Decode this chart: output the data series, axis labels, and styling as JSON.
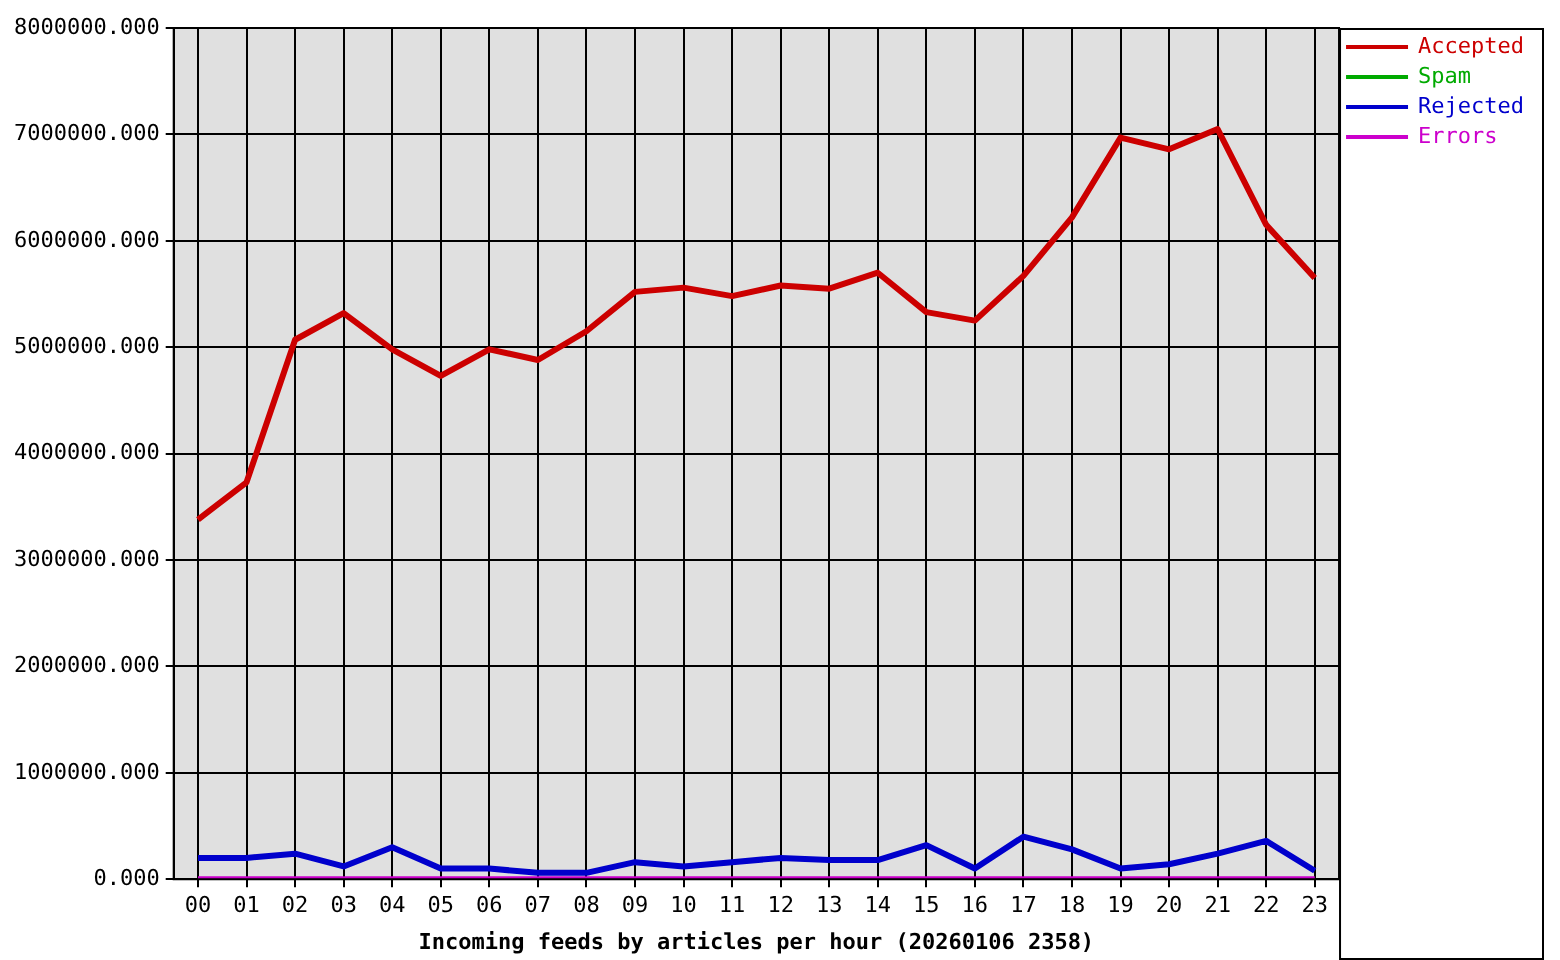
{
  "chart_data": {
    "type": "line",
    "xlabel": "Incoming feeds by articles per hour (20260106 2358)",
    "categories": [
      "00",
      "01",
      "02",
      "03",
      "04",
      "05",
      "06",
      "07",
      "08",
      "09",
      "10",
      "11",
      "12",
      "13",
      "14",
      "15",
      "16",
      "17",
      "18",
      "19",
      "20",
      "21",
      "22",
      "23"
    ],
    "series": [
      {
        "name": "Accepted",
        "color": "#cc0000",
        "values": [
          3380000,
          3730000,
          5070000,
          5320000,
          4980000,
          4730000,
          4980000,
          4880000,
          5150000,
          5520000,
          5560000,
          5480000,
          5580000,
          5550000,
          5700000,
          5330000,
          5250000,
          5670000,
          6220000,
          6970000,
          6860000,
          7050000,
          6150000,
          5650000
        ]
      },
      {
        "name": "Spam",
        "color": "#00aa00",
        "values": [
          null,
          null,
          null,
          null,
          null,
          null,
          null,
          null,
          null,
          null,
          null,
          null,
          null,
          null,
          null,
          null,
          null,
          null,
          null,
          null,
          null,
          null,
          null,
          null
        ]
      },
      {
        "name": "Rejected",
        "color": "#0000cc",
        "values": [
          200000,
          200000,
          240000,
          120000,
          300000,
          100000,
          100000,
          60000,
          60000,
          160000,
          120000,
          160000,
          200000,
          180000,
          180000,
          320000,
          100000,
          400000,
          280000,
          100000,
          140000,
          240000,
          360000,
          80000
        ]
      },
      {
        "name": "Errors",
        "color": "#cc00cc",
        "values": [
          0,
          0,
          0,
          0,
          0,
          0,
          0,
          0,
          0,
          0,
          0,
          0,
          0,
          0,
          0,
          0,
          0,
          0,
          0,
          0,
          0,
          0,
          0,
          0
        ]
      }
    ],
    "ylim": [
      0,
      8000000
    ],
    "yticks": [
      {
        "value": 0,
        "label": "0.000"
      },
      {
        "value": 1000000,
        "label": "1000000.000"
      },
      {
        "value": 2000000,
        "label": "2000000.000"
      },
      {
        "value": 3000000,
        "label": "3000000.000"
      },
      {
        "value": 4000000,
        "label": "4000000.000"
      },
      {
        "value": 5000000,
        "label": "5000000.000"
      },
      {
        "value": 6000000,
        "label": "6000000.000"
      },
      {
        "value": 7000000,
        "label": "7000000.000"
      },
      {
        "value": 8000000,
        "label": "8000000.000"
      }
    ],
    "grid": true,
    "legend": "top right",
    "marker": "none",
    "line_style": "solid"
  }
}
